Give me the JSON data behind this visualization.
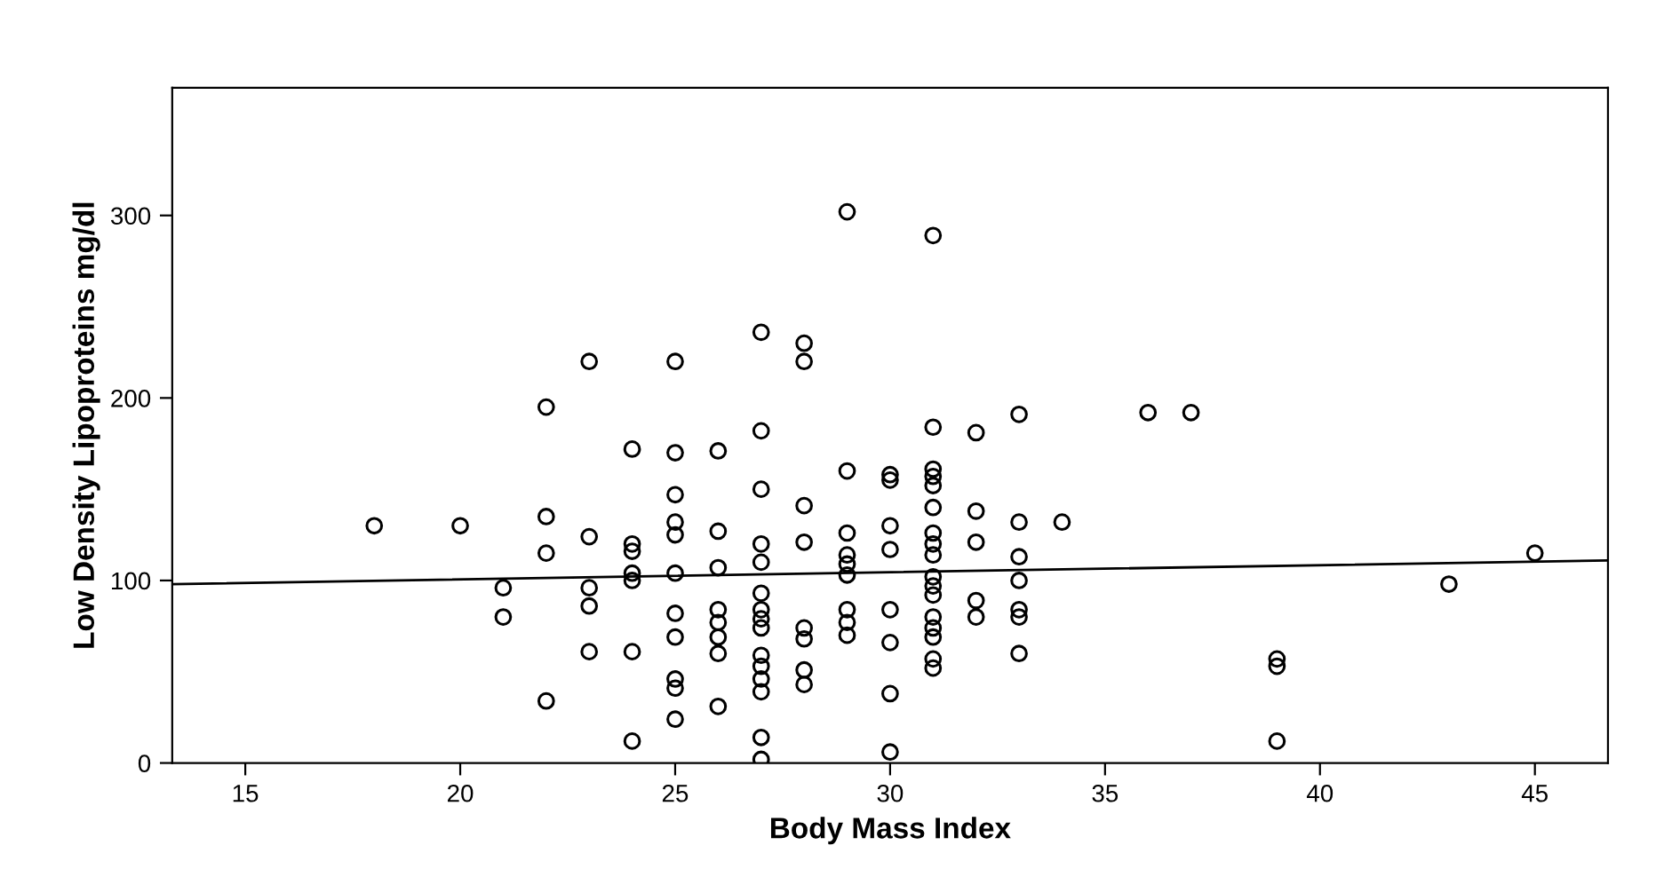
{
  "chart_data": {
    "type": "scatter",
    "xlabel": "Body Mass Index",
    "ylabel": "Low Density Lipoproteins mg/dl",
    "xlim": [
      13.3,
      46.7
    ],
    "xticks": [
      15,
      20,
      25,
      30,
      35,
      40,
      45
    ],
    "ylim": [
      0,
      370
    ],
    "yticks": [
      0,
      100,
      200,
      300
    ],
    "grid": false,
    "marker": "circle",
    "series": [
      {
        "color": "#000000",
        "x": [
          18,
          20,
          21,
          21,
          22,
          22,
          22,
          22,
          23,
          23,
          23,
          23,
          23,
          24,
          24,
          24,
          24,
          24,
          24,
          24,
          25,
          25,
          25,
          25,
          25,
          25,
          25,
          25,
          25,
          25,
          25,
          26,
          26,
          26,
          26,
          26,
          26,
          26,
          26,
          27,
          27,
          27,
          27,
          27,
          27,
          27,
          27,
          27,
          27,
          27,
          27,
          27,
          27,
          27,
          28,
          28,
          28,
          28,
          28,
          28,
          28,
          28,
          29,
          29,
          29,
          29,
          29,
          29,
          29,
          29,
          29,
          30,
          30,
          30,
          30,
          30,
          30,
          30,
          30,
          31,
          31,
          31,
          31,
          31,
          31,
          31,
          31,
          31,
          31,
          31,
          31,
          31,
          31,
          31,
          31,
          31,
          32,
          32,
          32,
          32,
          32,
          33,
          33,
          33,
          33,
          33,
          33,
          33,
          34,
          36,
          37,
          39,
          39,
          39,
          43,
          45
        ],
        "values": [
          130,
          130,
          96,
          80,
          195,
          135,
          115,
          34,
          220,
          124,
          96,
          86,
          61,
          172,
          120,
          116,
          104,
          100,
          61,
          12,
          220,
          170,
          147,
          132,
          125,
          104,
          82,
          69,
          46,
          41,
          24,
          171,
          127,
          107,
          84,
          77,
          69,
          60,
          31,
          236,
          182,
          150,
          120,
          110,
          93,
          84,
          79,
          74,
          59,
          53,
          46,
          39,
          14,
          2,
          230,
          220,
          141,
          121,
          74,
          68,
          51,
          43,
          302,
          160,
          126,
          114,
          109,
          103,
          84,
          77,
          70,
          158,
          155,
          130,
          117,
          84,
          66,
          38,
          6,
          289,
          184,
          161,
          157,
          152,
          140,
          126,
          120,
          114,
          102,
          97,
          92,
          80,
          74,
          69,
          57,
          52,
          181,
          138,
          121,
          89,
          80,
          191,
          132,
          113,
          100,
          84,
          80,
          60,
          132,
          192,
          192,
          57,
          53,
          12,
          98,
          115
        ]
      },
      {
        "type": "line",
        "color": "#000000",
        "marker": "none",
        "x": [
          13.3,
          46.7
        ],
        "values": [
          98,
          111
        ]
      }
    ]
  }
}
